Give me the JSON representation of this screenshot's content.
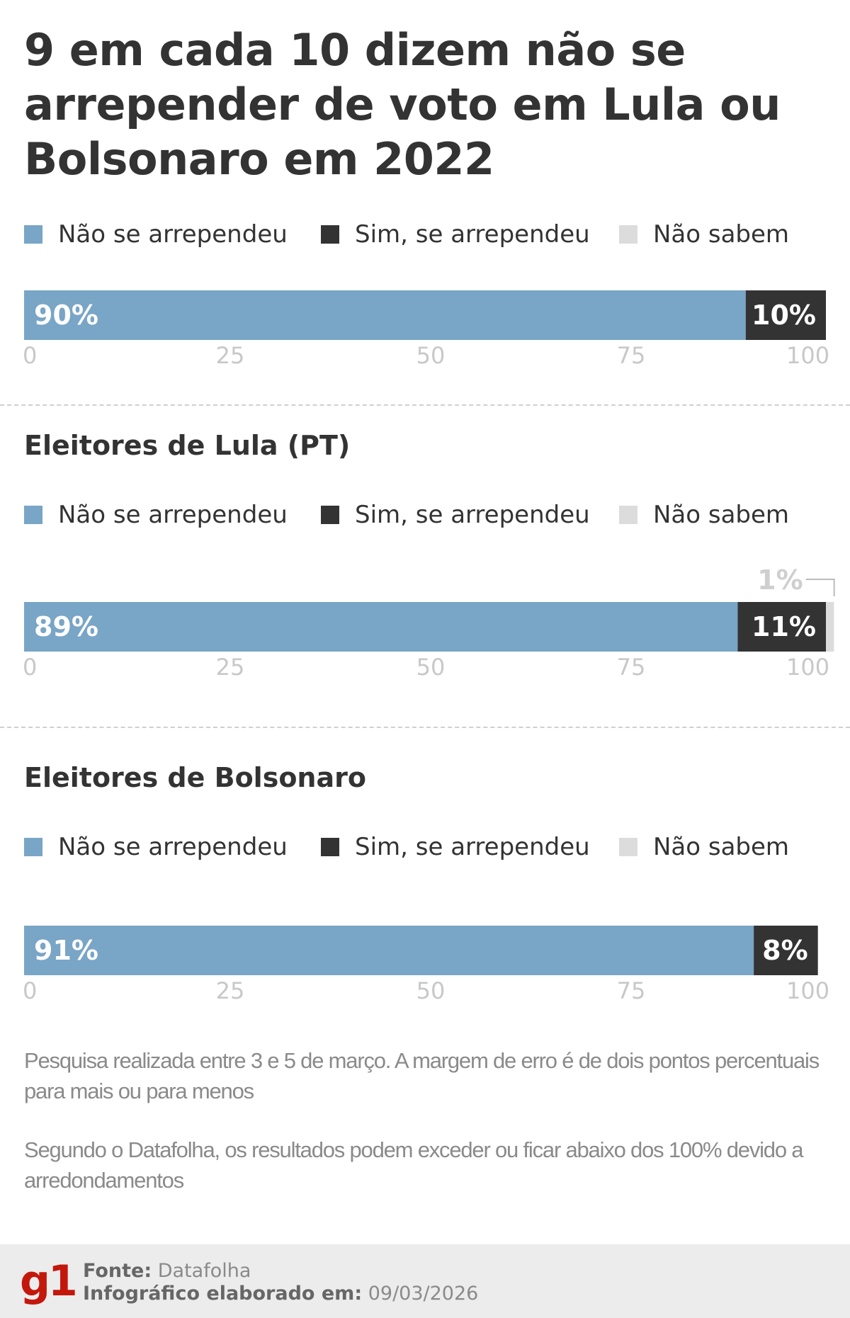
{
  "title": "9 em cada 10 dizem não se arrepender de voto em Lula ou Bolsonaro em 2022",
  "colors": {
    "nao_se_arrependeu": "#79a5c6",
    "sim_se_arrependeu": "#333333",
    "nao_sabem": "#dcdcdc",
    "axis_text": "#c8c8c8",
    "brand": "#c4170c"
  },
  "legend": {
    "nao_se_arrependeu": "Não se arrependeu",
    "sim_se_arrependeu": "Sim, se arrependeu",
    "nao_sabem": "Não sabem"
  },
  "sections": [
    {
      "title": ""
    },
    {
      "title": "Eleitores de Lula (PT)"
    },
    {
      "title": "Eleitores de Bolsonaro"
    }
  ],
  "chart_data": [
    {
      "type": "bar",
      "orientation": "horizontal-stacked",
      "title": "",
      "xlim": [
        0,
        100
      ],
      "ticks": [
        0,
        25,
        50,
        75,
        100
      ],
      "series": [
        {
          "name": "Não se arrependeu",
          "values": [
            90
          ],
          "labels": [
            "90%"
          ]
        },
        {
          "name": "Sim, se arrependeu",
          "values": [
            10
          ],
          "labels": [
            "10%"
          ]
        },
        {
          "name": "Não sabem",
          "values": [
            0
          ],
          "labels": [
            ""
          ]
        }
      ]
    },
    {
      "type": "bar",
      "orientation": "horizontal-stacked",
      "title": "Eleitores de Lula (PT)",
      "xlim": [
        0,
        100
      ],
      "ticks": [
        0,
        25,
        50,
        75,
        100
      ],
      "series": [
        {
          "name": "Não se arrependeu",
          "values": [
            89
          ],
          "labels": [
            "89%"
          ]
        },
        {
          "name": "Sim, se arrependeu",
          "values": [
            11
          ],
          "labels": [
            "11%"
          ]
        },
        {
          "name": "Não sabem",
          "values": [
            1
          ],
          "labels": [
            "1%"
          ]
        }
      ]
    },
    {
      "type": "bar",
      "orientation": "horizontal-stacked",
      "title": "Eleitores de Bolsonaro",
      "xlim": [
        0,
        100
      ],
      "ticks": [
        0,
        25,
        50,
        75,
        100
      ],
      "series": [
        {
          "name": "Não se arrependeu",
          "values": [
            91
          ],
          "labels": [
            "91%"
          ]
        },
        {
          "name": "Sim, se arrependeu",
          "values": [
            8
          ],
          "labels": [
            "8%"
          ]
        },
        {
          "name": "Não sabem",
          "values": [
            0
          ],
          "labels": [
            ""
          ]
        }
      ]
    }
  ],
  "notes": [
    "Pesquisa realizada entre 3 e 5 de março. A margem de erro é de dois pontos percentuais para mais ou para menos",
    "Segundo o Datafolha, os resultados podem exceder ou ficar abaixo dos 100% devido a arredondamentos"
  ],
  "footer": {
    "logo": "g1",
    "source_label": "Fonte:",
    "source_value": "Datafolha",
    "date_label": "Infográfico elaborado em:",
    "date_value": "09/03/2026"
  }
}
